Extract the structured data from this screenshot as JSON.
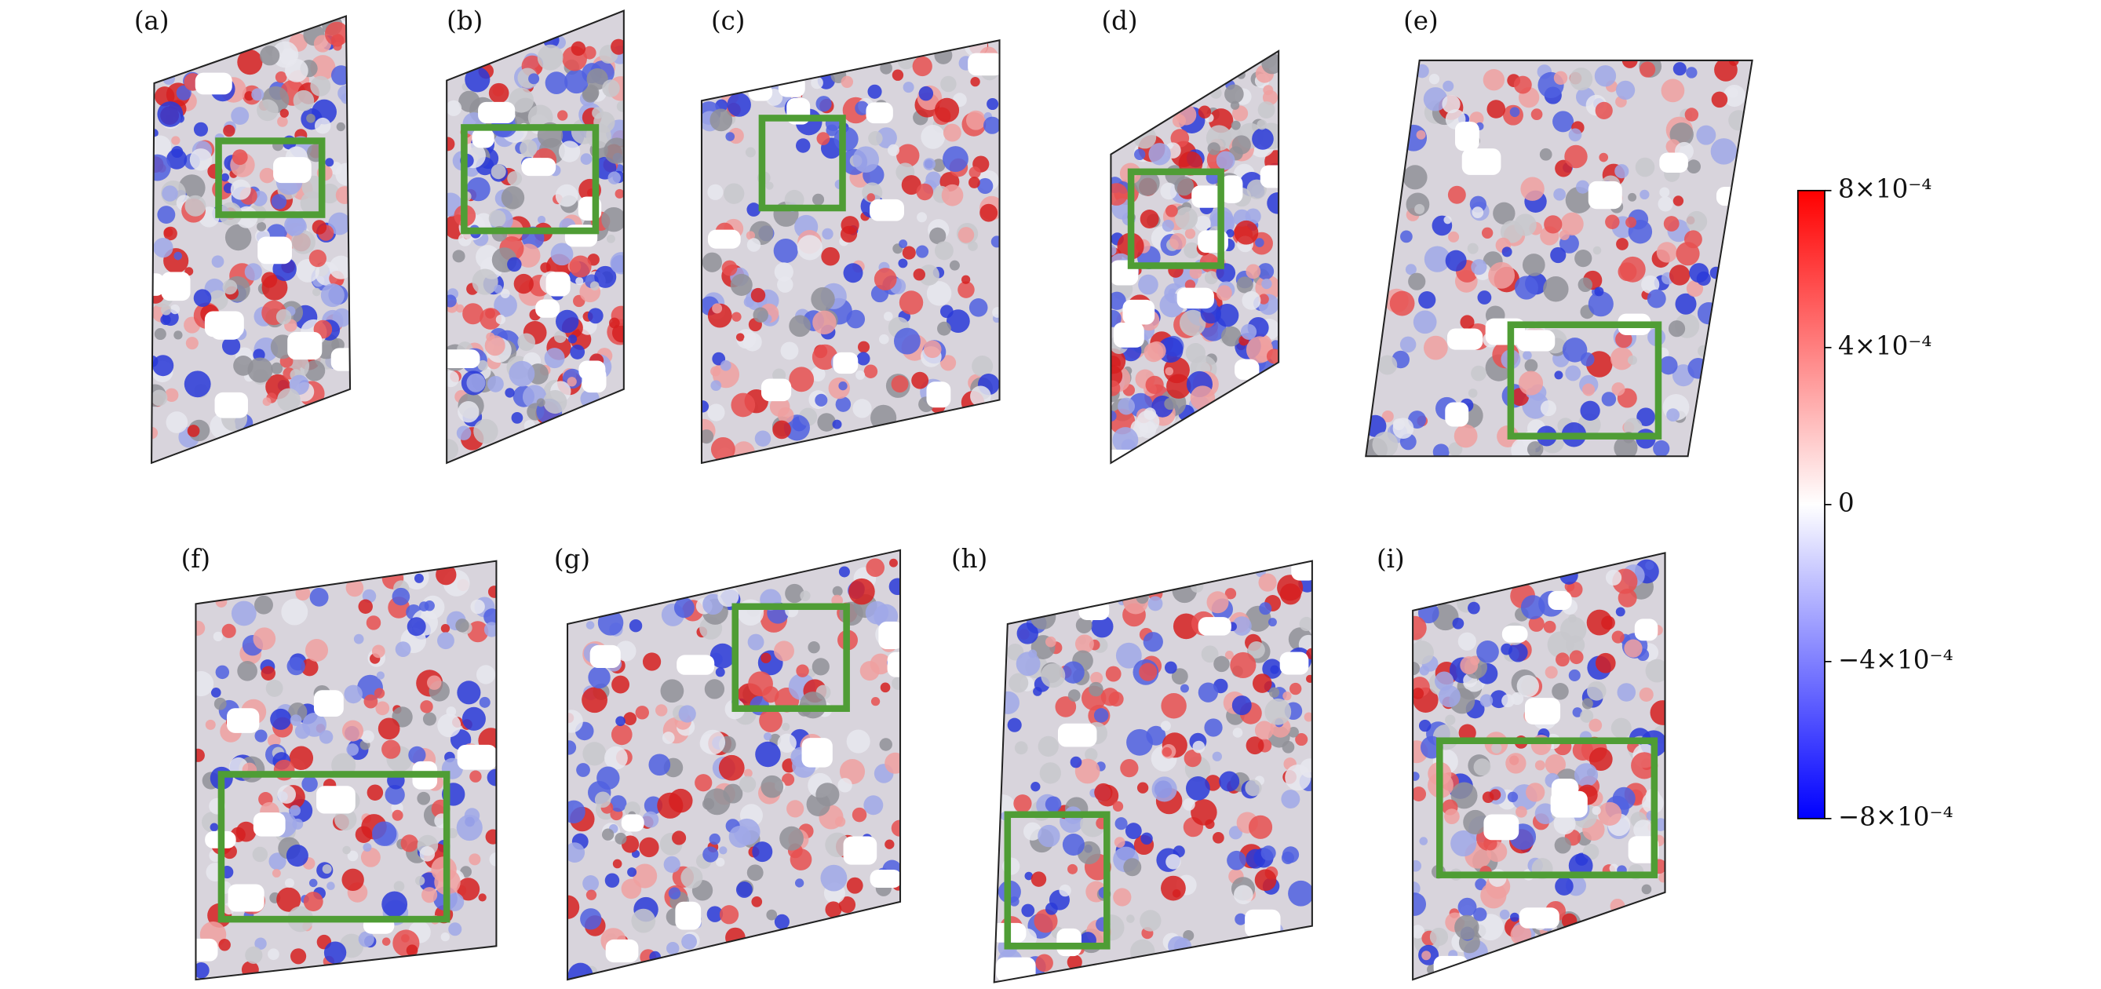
{
  "panels": [
    {
      "label": "(a)"
    },
    {
      "label": "(b)"
    },
    {
      "label": "(c)"
    },
    {
      "label": "(d)"
    },
    {
      "label": "(e)"
    },
    {
      "label": "(f)"
    },
    {
      "label": "(g)"
    },
    {
      "label": "(h)"
    },
    {
      "label": "(i)"
    }
  ],
  "colorbar": {
    "lim": [
      -0.0008,
      0.0008
    ],
    "ticks": [
      {
        "value": 0.0008,
        "label": "8×10⁻⁴"
      },
      {
        "value": 0.0004,
        "label": "4×10⁻⁴"
      },
      0,
      {
        "value": -0.0004,
        "label": "−4×10⁻⁴"
      },
      {
        "value": -0.0008,
        "label": "−8×10⁻⁴"
      }
    ]
  }
}
